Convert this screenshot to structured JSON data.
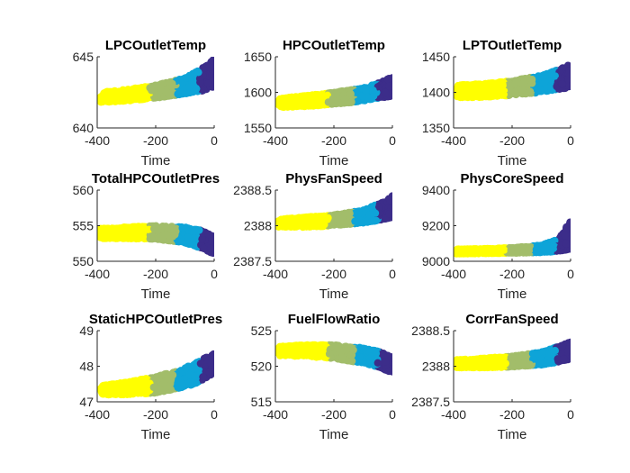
{
  "chart_data": [
    {
      "type": "scatter",
      "title": "LPCOutletTemp",
      "xlabel": "Time",
      "ylabel": "",
      "xlim": [
        -400,
        0
      ],
      "ylim": [
        640,
        645
      ],
      "xticks": [
        "-400",
        "-200",
        "0"
      ],
      "yticks": [
        "640",
        "645"
      ],
      "band": [
        [
          -390,
          641.8,
          642.5
        ],
        [
          -300,
          641.9,
          642.7
        ],
        [
          -200,
          642.1,
          643.0
        ],
        [
          -100,
          642.4,
          643.5
        ],
        [
          -40,
          642.6,
          644.2
        ],
        [
          0,
          642.9,
          644.9
        ]
      ]
    },
    {
      "type": "scatter",
      "title": "HPCOutletTemp",
      "xlabel": "Time",
      "ylabel": "",
      "xlim": [
        -400,
        0
      ],
      "ylim": [
        1550,
        1650
      ],
      "xticks": [
        "-400",
        "-200",
        "0"
      ],
      "yticks": [
        "1550",
        "1600",
        "1650"
      ],
      "band": [
        [
          -390,
          1579,
          1592
        ],
        [
          -300,
          1580,
          1595
        ],
        [
          -200,
          1583,
          1600
        ],
        [
          -100,
          1588,
          1606
        ],
        [
          -40,
          1592,
          1614
        ],
        [
          0,
          1595,
          1622
        ]
      ]
    },
    {
      "type": "scatter",
      "title": "LPTOutletTemp",
      "xlabel": "Time",
      "ylabel": "",
      "xlim": [
        -400,
        0
      ],
      "ylim": [
        1350,
        1450
      ],
      "xticks": [
        "-400",
        "-200",
        "0"
      ],
      "yticks": [
        "1350",
        "1400",
        "1450"
      ],
      "band": [
        [
          -390,
          1393,
          1410
        ],
        [
          -300,
          1393,
          1412
        ],
        [
          -200,
          1396,
          1416
        ],
        [
          -100,
          1400,
          1424
        ],
        [
          -40,
          1404,
          1432
        ],
        [
          0,
          1407,
          1440
        ]
      ]
    },
    {
      "type": "scatter",
      "title": "TotalHPCOutletPres",
      "xlabel": "Time",
      "ylabel": "",
      "xlim": [
        -400,
        0
      ],
      "ylim": [
        550,
        560
      ],
      "xticks": [
        "-400",
        "-200",
        "0"
      ],
      "yticks": [
        "550",
        "555",
        "560"
      ],
      "band": [
        [
          -390,
          553.2,
          554.6
        ],
        [
          -300,
          553.2,
          554.8
        ],
        [
          -200,
          553.1,
          555.0
        ],
        [
          -100,
          552.6,
          554.8
        ],
        [
          -40,
          551.8,
          554.3
        ],
        [
          0,
          550.9,
          553.4
        ]
      ]
    },
    {
      "type": "scatter",
      "title": "PhysFanSpeed",
      "xlabel": "Time",
      "ylabel": "",
      "xlim": [
        -400,
        0
      ],
      "ylim": [
        2387.5,
        2388.5
      ],
      "xticks": [
        "-400",
        "-200",
        "0"
      ],
      "yticks": [
        "2387.5",
        "2388",
        "2388.5"
      ],
      "band": [
        [
          -390,
          2387.98,
          2388.09
        ],
        [
          -300,
          2387.98,
          2388.12
        ],
        [
          -200,
          2388.0,
          2388.15
        ],
        [
          -100,
          2388.04,
          2388.22
        ],
        [
          -40,
          2388.08,
          2388.32
        ],
        [
          0,
          2388.12,
          2388.42
        ]
      ]
    },
    {
      "type": "scatter",
      "title": "PhysCoreSpeed",
      "xlabel": "Time",
      "ylabel": "",
      "xlim": [
        -400,
        0
      ],
      "ylim": [
        9000,
        9400
      ],
      "xticks": [
        "-400",
        "-200",
        "0"
      ],
      "yticks": [
        "9000",
        "9200",
        "9400"
      ],
      "band": [
        [
          -390,
          9042,
          9068
        ],
        [
          -300,
          9044,
          9070
        ],
        [
          -200,
          9046,
          9076
        ],
        [
          -100,
          9050,
          9090
        ],
        [
          -40,
          9056,
          9125
        ],
        [
          0,
          9065,
          9230
        ]
      ]
    },
    {
      "type": "scatter",
      "title": "StaticHPCOutletPres",
      "xlabel": "Time",
      "ylabel": "",
      "xlim": [
        -400,
        0
      ],
      "ylim": [
        47,
        49
      ],
      "xticks": [
        "-400",
        "-200",
        "0"
      ],
      "yticks": [
        "47",
        "48",
        "49"
      ],
      "band": [
        [
          -390,
          47.2,
          47.45
        ],
        [
          -300,
          47.2,
          47.55
        ],
        [
          -200,
          47.25,
          47.7
        ],
        [
          -100,
          47.4,
          47.95
        ],
        [
          -40,
          47.6,
          48.2
        ],
        [
          0,
          47.8,
          48.35
        ]
      ]
    },
    {
      "type": "scatter",
      "title": "FuelFlowRatio",
      "xlabel": "Time",
      "ylabel": "",
      "xlim": [
        -400,
        0
      ],
      "ylim": [
        515,
        525
      ],
      "xticks": [
        "-400",
        "-200",
        "0"
      ],
      "yticks": [
        "515",
        "520",
        "525"
      ],
      "band": [
        [
          -390,
          521.5,
          522.8
        ],
        [
          -300,
          521.4,
          523.0
        ],
        [
          -200,
          521.1,
          523.0
        ],
        [
          -100,
          520.4,
          522.6
        ],
        [
          -40,
          519.8,
          522.0
        ],
        [
          0,
          519.0,
          521.3
        ]
      ]
    },
    {
      "type": "scatter",
      "title": "CorrFanSpeed",
      "xlabel": "Time",
      "ylabel": "",
      "xlim": [
        -400,
        0
      ],
      "ylim": [
        2387.5,
        2388.5
      ],
      "xticks": [
        "-400",
        "-200",
        "0"
      ],
      "yticks": [
        "2387.5",
        "2388",
        "2388.5"
      ],
      "band": [
        [
          -390,
          2387.98,
          2388.09
        ],
        [
          -300,
          2387.98,
          2388.11
        ],
        [
          -200,
          2387.99,
          2388.14
        ],
        [
          -100,
          2388.02,
          2388.2
        ],
        [
          -40,
          2388.06,
          2388.28
        ],
        [
          0,
          2388.1,
          2388.34
        ]
      ]
    }
  ],
  "cluster_colors": [
    "#ffff00",
    "#a2bd6a",
    "#0ea4d8",
    "#3c2d8a"
  ],
  "cluster_bounds": [
    -400,
    -220,
    -130,
    -50,
    0
  ]
}
